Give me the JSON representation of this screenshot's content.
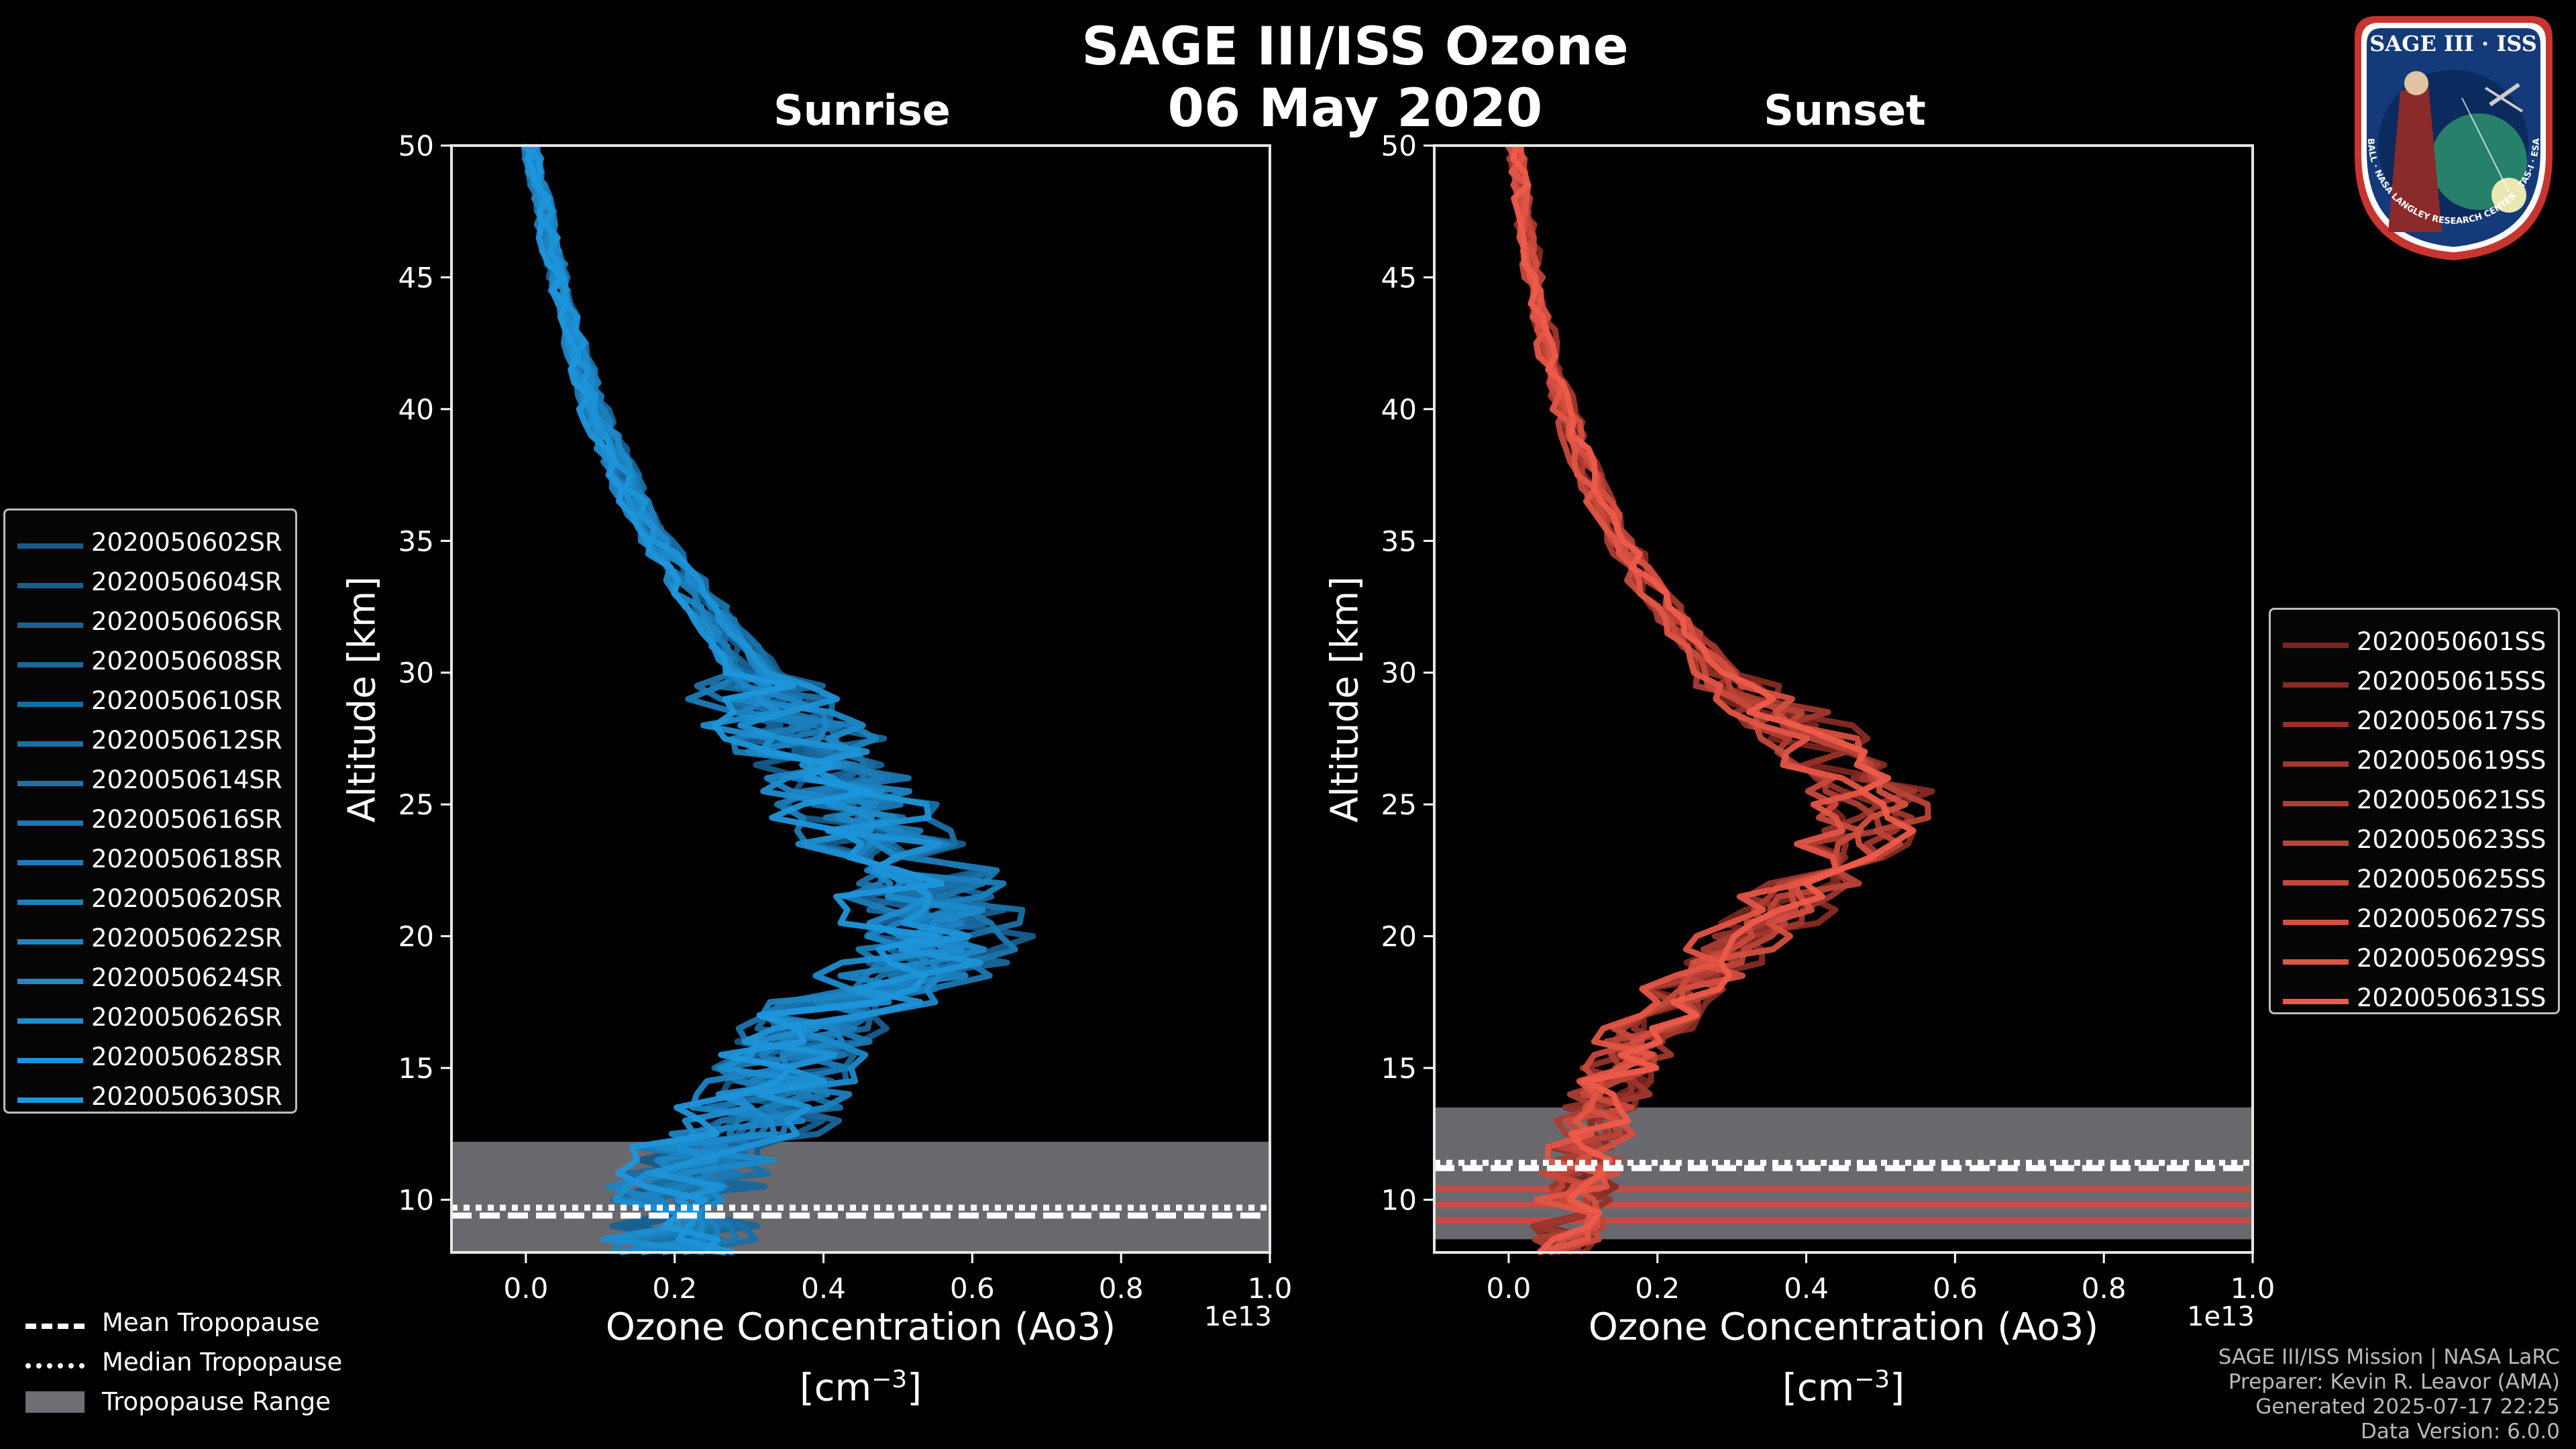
{
  "title": {
    "line1": "SAGE III/ISS Ozone",
    "line2": "06 May 2020"
  },
  "logo": {
    "text_top": "SAGE III · ISS",
    "text_ring": "BALL · NASA LANGLEY RESEARCH CENTER · TAS-I · ESA"
  },
  "credits": {
    "line1": "SAGE III/ISS Mission | NASA LaRC",
    "line2": "Preparer: Kevin R. Leavor (AMA)",
    "line3": "Generated 2025-07-17 22:25",
    "line4": "Data Version: 6.0.0"
  },
  "colors": {
    "sunrise": "#1e90d6",
    "sunset": "#ee5b4a",
    "tropo_fill": "#6f6f73"
  },
  "tropopause_legend": {
    "mean": "Mean Tropopause",
    "median": "Median Tropopause",
    "range": "Tropopause Range"
  },
  "chart_data": [
    {
      "type": "line",
      "title": "Sunrise",
      "xlabel": "Ozone Concentration (Ao3)",
      "xunit": "[cm",
      "xunit_exp": "−3",
      "xunit_close": "]",
      "ylabel": "Altitude [km]",
      "x_exponent": "1e13",
      "xlim": [
        -0.1,
        1.0
      ],
      "ylim": [
        8,
        50
      ],
      "xticks": [
        "0.0",
        "0.2",
        "0.4",
        "0.6",
        "0.8",
        "1.0"
      ],
      "yticks": [
        "10",
        "15",
        "20",
        "25",
        "30",
        "35",
        "40",
        "45",
        "50"
      ],
      "tropopause": {
        "mean": 9.4,
        "median": 9.7,
        "range": [
          8,
          12.2
        ]
      },
      "base_profile": {
        "altitude": [
          8,
          9,
          10,
          11,
          12,
          13,
          14,
          15,
          16,
          17,
          18,
          19,
          20,
          21,
          22,
          23,
          24,
          25,
          26,
          27,
          28,
          29,
          30,
          32,
          34,
          36,
          38,
          40,
          42,
          44,
          46,
          48,
          50
        ],
        "ozone": [
          0.2,
          0.2,
          0.2,
          0.22,
          0.25,
          0.3,
          0.33,
          0.34,
          0.36,
          0.4,
          0.47,
          0.53,
          0.55,
          0.54,
          0.52,
          0.49,
          0.46,
          0.43,
          0.41,
          0.38,
          0.35,
          0.32,
          0.3,
          0.25,
          0.2,
          0.15,
          0.12,
          0.09,
          0.07,
          0.05,
          0.035,
          0.02,
          0.005
        ]
      },
      "series": [
        {
          "name": "2020050602SR"
        },
        {
          "name": "2020050604SR"
        },
        {
          "name": "2020050606SR"
        },
        {
          "name": "2020050608SR"
        },
        {
          "name": "2020050610SR"
        },
        {
          "name": "2020050612SR"
        },
        {
          "name": "2020050614SR"
        },
        {
          "name": "2020050616SR"
        },
        {
          "name": "2020050618SR"
        },
        {
          "name": "2020050620SR"
        },
        {
          "name": "2020050622SR"
        },
        {
          "name": "2020050624SR"
        },
        {
          "name": "2020050626SR"
        },
        {
          "name": "2020050628SR"
        },
        {
          "name": "2020050630SR"
        }
      ]
    },
    {
      "type": "line",
      "title": "Sunset",
      "xlabel": "Ozone Concentration (Ao3)",
      "xunit": "[cm",
      "xunit_exp": "−3",
      "xunit_close": "]",
      "ylabel": "Altitude [km]",
      "x_exponent": "1e13",
      "xlim": [
        -0.1,
        1.0
      ],
      "ylim": [
        8,
        50
      ],
      "xticks": [
        "0.0",
        "0.2",
        "0.4",
        "0.6",
        "0.8",
        "1.0"
      ],
      "yticks": [
        "10",
        "15",
        "20",
        "25",
        "30",
        "35",
        "40",
        "45",
        "50"
      ],
      "tropopause": {
        "mean": 11.2,
        "median": 11.4,
        "range": [
          8.5,
          13.5
        ],
        "extra_levels": [
          9.2,
          9.8,
          10.4
        ]
      },
      "base_profile": {
        "altitude": [
          8,
          9,
          10,
          11,
          12,
          13,
          14,
          15,
          16,
          17,
          18,
          19,
          20,
          21,
          22,
          23,
          24,
          25,
          26,
          27,
          28,
          29,
          30,
          32,
          34,
          36,
          38,
          40,
          42,
          44,
          46,
          48,
          50
        ],
        "ozone": [
          0.08,
          0.08,
          0.09,
          0.1,
          0.11,
          0.12,
          0.13,
          0.15,
          0.17,
          0.2,
          0.24,
          0.28,
          0.32,
          0.36,
          0.41,
          0.45,
          0.48,
          0.49,
          0.47,
          0.43,
          0.38,
          0.33,
          0.28,
          0.22,
          0.17,
          0.13,
          0.1,
          0.075,
          0.055,
          0.04,
          0.028,
          0.018,
          0.008
        ]
      },
      "series": [
        {
          "name": "2020050601SS"
        },
        {
          "name": "2020050615SS"
        },
        {
          "name": "2020050617SS"
        },
        {
          "name": "2020050619SS"
        },
        {
          "name": "2020050621SS"
        },
        {
          "name": "2020050623SS"
        },
        {
          "name": "2020050625SS"
        },
        {
          "name": "2020050627SS"
        },
        {
          "name": "2020050629SS"
        },
        {
          "name": "2020050631SS"
        }
      ]
    }
  ]
}
